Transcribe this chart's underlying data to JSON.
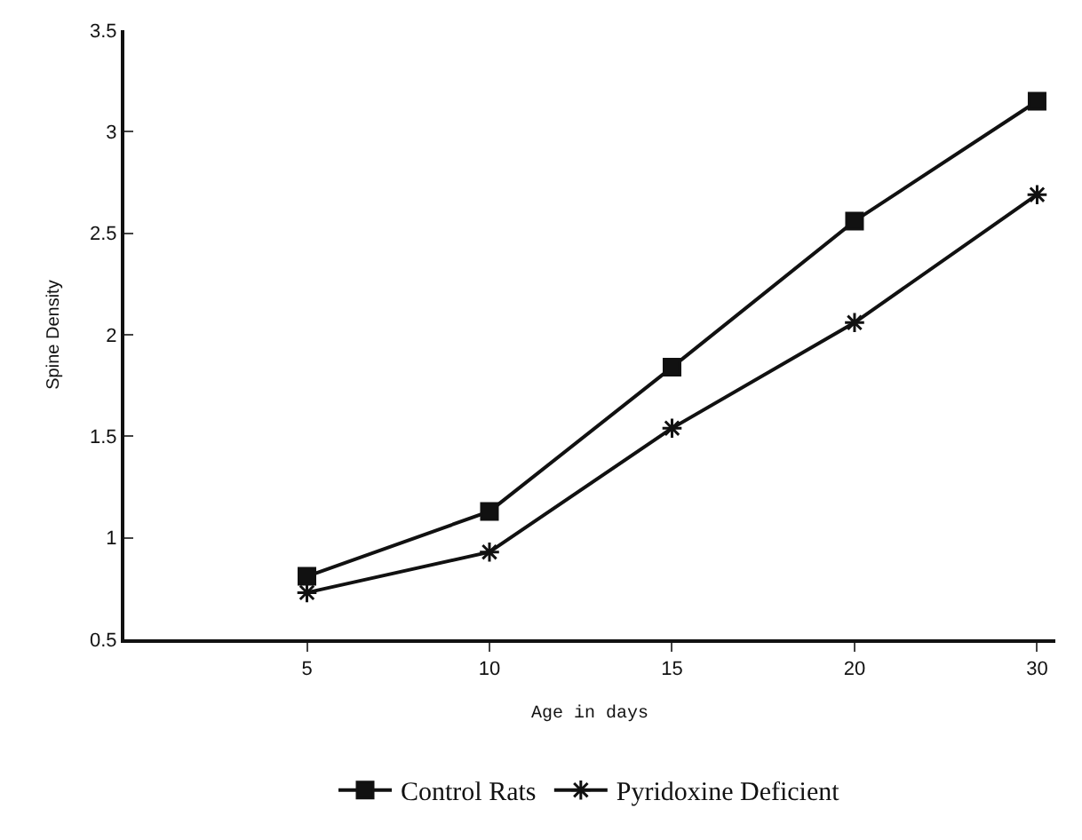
{
  "chart_data": {
    "type": "line",
    "xlabel": "Age in days",
    "ylabel": "Spine Density",
    "categories": [
      "5",
      "10",
      "15",
      "20",
      "30"
    ],
    "ylim": [
      0.5,
      3.5
    ],
    "yticks": [
      0.5,
      1,
      1.5,
      2,
      2.5,
      3,
      3.5
    ],
    "legend": "bottom",
    "line_style": "solid",
    "series": [
      {
        "name": "Control Rats",
        "color": "#111111",
        "marker": "square",
        "values": [
          0.81,
          1.13,
          1.84,
          2.56,
          3.15
        ]
      },
      {
        "name": "Pyridoxine Deficient",
        "color": "#111111",
        "marker": "cross",
        "values": [
          0.73,
          0.93,
          1.54,
          2.06,
          2.69
        ]
      }
    ]
  }
}
